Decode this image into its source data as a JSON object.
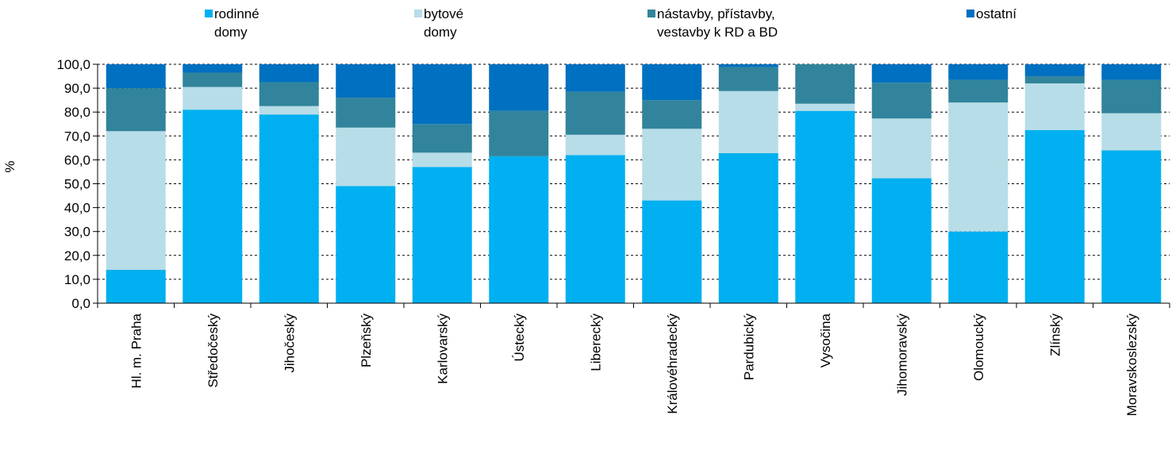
{
  "chart_data": {
    "type": "bar",
    "stacked": true,
    "ylabel": "%",
    "ylim": [
      0,
      100
    ],
    "yticks": [
      "0,0",
      "10,0",
      "20,0",
      "30,0",
      "40,0",
      "50,0",
      "60,0",
      "70,0",
      "80,0",
      "90,0",
      "100,0"
    ],
    "grid": "horizontal dashed",
    "legend_position": "top",
    "categories": [
      "Hl. m. Praha",
      "Středočeský",
      "Jihočeský",
      "Plzeňský",
      "Karlovarský",
      "Ústecký",
      "Liberecký",
      "Královéhradecký",
      "Pardubický",
      "Vysočina",
      "Jihomoravský",
      "Olomoucký",
      "Zlínský",
      "Moravskoslezský"
    ],
    "series": [
      {
        "name": "rodinné domy",
        "legend_lines": [
          "rodinné",
          "domy"
        ],
        "color": "#00b0f0",
        "values": [
          14.0,
          81.0,
          79.0,
          49.0,
          57.0,
          61.5,
          62.0,
          43.0,
          62.8,
          80.5,
          52.3,
          30.0,
          72.5,
          64.0
        ]
      },
      {
        "name": "bytové domy",
        "legend_lines": [
          "bytové",
          "domy"
        ],
        "color": "#b7dde8",
        "values": [
          58.0,
          9.5,
          3.5,
          24.5,
          6.0,
          0.0,
          8.5,
          30.0,
          26.0,
          3.0,
          25.0,
          54.0,
          19.5,
          15.5
        ]
      },
      {
        "name": "nástavby, přístavby, vestavby k RD a BD",
        "legend_lines": [
          "nástavby, přístavby,",
          "vestavby k RD a BD"
        ],
        "color": "#31849b",
        "values": [
          18.0,
          6.0,
          10.0,
          12.5,
          12.0,
          19.0,
          18.0,
          12.0,
          10.0,
          16.5,
          15.0,
          9.5,
          3.0,
          14.0
        ]
      },
      {
        "name": "ostatní",
        "legend_lines": [
          "ostatní"
        ],
        "color": "#0070c0",
        "values": [
          10.0,
          3.5,
          7.5,
          14.0,
          25.0,
          19.5,
          11.5,
          15.0,
          1.2,
          0.0,
          7.7,
          6.5,
          5.0,
          6.5
        ]
      }
    ]
  }
}
